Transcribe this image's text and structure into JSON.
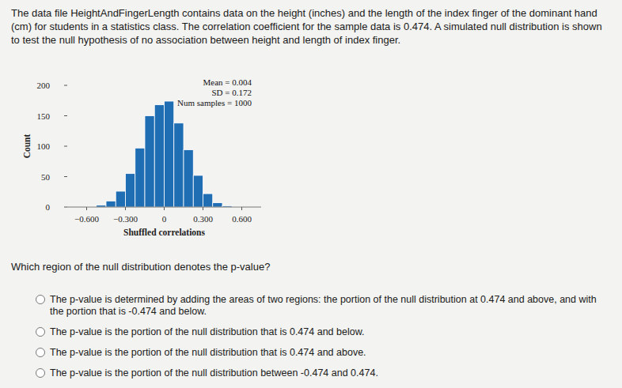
{
  "intro": "The data file HeightAndFingerLength contains data on the height (inches) and the length of the index finger of the dominant hand (cm) for students in a statistics class. The correlation coefficient for the sample data is 0.474. A simulated null distribution is shown to test the null hypothesis of no association between height and length of index finger.",
  "chart_data": {
    "type": "histogram",
    "xlabel": "Shuffled correlations",
    "ylabel": "Count",
    "annotations": [
      "Mean = 0.004",
      "SD = 0.172",
      "Num samples = 1000"
    ],
    "bins": [
      -0.6,
      -0.525,
      -0.45,
      -0.375,
      -0.3,
      -0.225,
      -0.15,
      -0.075,
      0,
      0.075,
      0.15,
      0.225,
      0.3,
      0.375,
      0.45,
      0.525,
      0.6
    ],
    "values": [
      1,
      3,
      10,
      26,
      55,
      97,
      150,
      168,
      174,
      138,
      94,
      52,
      22,
      7,
      2,
      1
    ],
    "color": "#1f6db3",
    "xlim": [
      -0.75,
      0.75
    ],
    "xticks": [
      {
        "value": -0.6,
        "label": "−0.600"
      },
      {
        "value": -0.3,
        "label": "−0.300"
      },
      0,
      {
        "value": 0.3,
        "label": "0.300"
      },
      {
        "value": 0.6,
        "label": "0.600"
      }
    ],
    "ylim": [
      0,
      200
    ],
    "yticks": [
      0,
      50,
      100,
      150,
      200
    ],
    "grid": false
  },
  "question": "Which region of the null distribution denotes the p-value?",
  "options": [
    "The p-value is determined by adding the areas of two regions: the portion of the null distribution at 0.474 and above, and with the portion that is -0.474 and below.",
    "The p-value is the portion of the null distribution that is 0.474 and below.",
    "The p-value is the portion of the null distribution that is 0.474 and above.",
    "The p-value is the portion of the null distribution between -0.474 and 0.474."
  ]
}
